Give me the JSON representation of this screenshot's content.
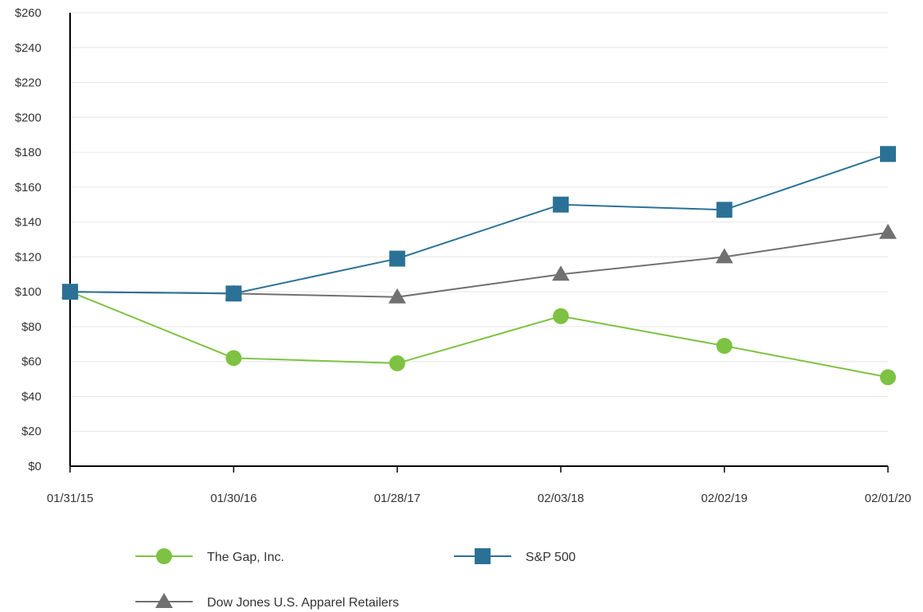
{
  "chart_data": {
    "type": "line",
    "x": [
      "01/31/15",
      "01/30/16",
      "01/28/17",
      "02/03/18",
      "02/02/19",
      "02/01/20"
    ],
    "y_ticks": [
      "$0",
      "$20",
      "$40",
      "$60",
      "$80",
      "$100",
      "$120",
      "$140",
      "$160",
      "$180",
      "$200",
      "$220",
      "$240",
      "$260"
    ],
    "ylim": [
      0,
      260
    ],
    "grid": true,
    "legend_position": "bottom",
    "series": [
      {
        "name": "The Gap, Inc.",
        "values": [
          100,
          62,
          59,
          86,
          69,
          51
        ],
        "color": "#7dc242",
        "marker": "circle"
      },
      {
        "name": "S&P 500",
        "values": [
          100,
          99,
          119,
          150,
          147,
          179
        ],
        "color": "#2b7196",
        "marker": "square"
      },
      {
        "name": "Dow Jones U.S. Apparel Retailers",
        "values": [
          100,
          99,
          97,
          110,
          120,
          134
        ],
        "color": "#707070",
        "marker": "triangle"
      }
    ]
  }
}
